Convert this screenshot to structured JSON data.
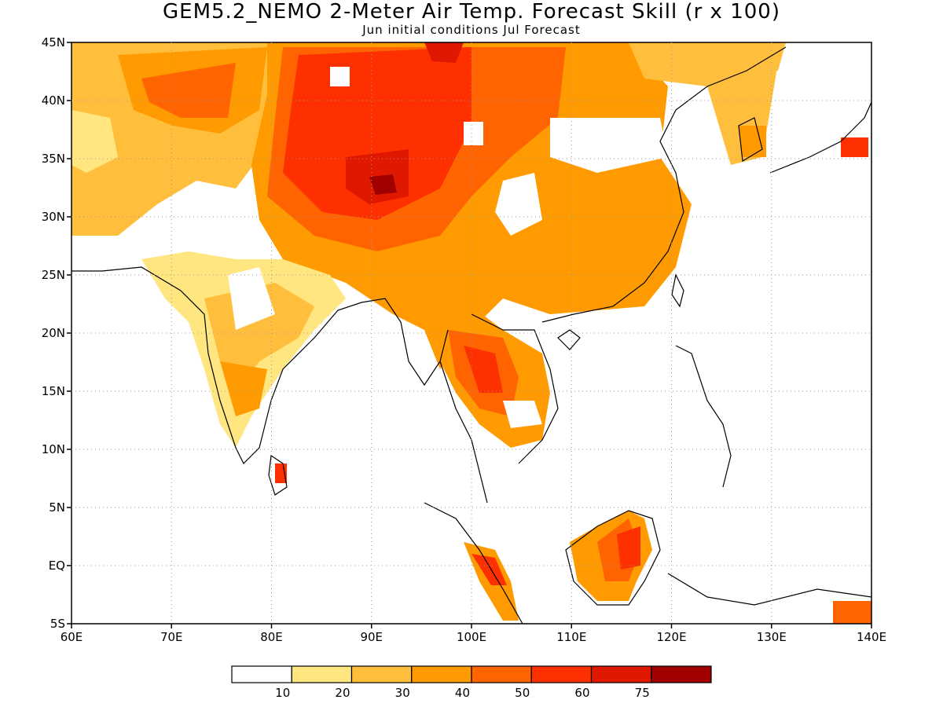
{
  "title": "GEM5.2_NEMO 2-Meter Air Temp. Forecast Skill (r x 100)",
  "subtitle": "Jun initial conditions  Jul Forecast",
  "axes": {
    "lat_ticks": [
      "45N",
      "40N",
      "35N",
      "30N",
      "25N",
      "20N",
      "15N",
      "10N",
      "5N",
      "EQ",
      "5S"
    ],
    "lon_ticks": [
      "60E",
      "70E",
      "80E",
      "90E",
      "100E",
      "110E",
      "120E",
      "130E",
      "140E"
    ],
    "lon_range": [
      60,
      140
    ],
    "lat_range": [
      -5,
      45
    ],
    "grid": "dotted"
  },
  "colorbar": {
    "colors": [
      "#ffffff",
      "#ffe680",
      "#ffbe3c",
      "#ff9b00",
      "#ff6400",
      "#ff3000",
      "#e01800",
      "#a00000"
    ],
    "labels": [
      "10",
      "20",
      "30",
      "40",
      "50",
      "60",
      "75"
    ]
  }
}
